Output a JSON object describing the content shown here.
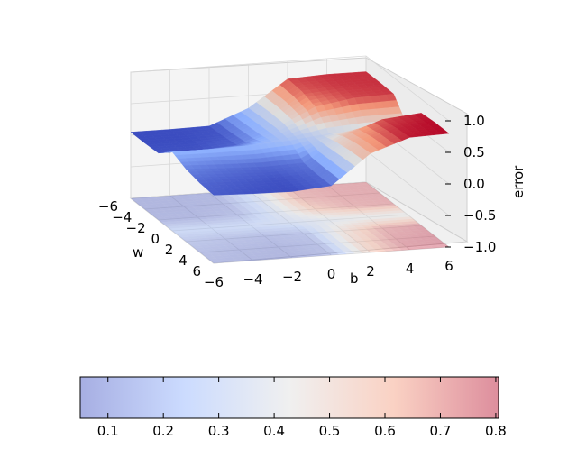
{
  "chart_data": {
    "type": "surface3d",
    "title": "",
    "x_axis": {
      "label": "w",
      "ticks": [
        "−6",
        "−4",
        "−2",
        "0",
        "2",
        "4",
        "6"
      ],
      "range": [
        -6,
        6
      ]
    },
    "y_axis": {
      "label": "b",
      "ticks": [
        "−6",
        "−4",
        "−2",
        "0",
        "2",
        "4",
        "6"
      ],
      "range": [
        -6,
        6
      ]
    },
    "z_axis": {
      "label": "error",
      "ticks": [
        "−1.0",
        "−0.5",
        "0.0",
        "0.5",
        "1.0"
      ],
      "range": [
        -1.0,
        1.0
      ]
    },
    "surface": {
      "w": [
        -6,
        -4,
        -2,
        0,
        2,
        4,
        6
      ],
      "b": [
        -6,
        -4,
        -2,
        0,
        2,
        4,
        6
      ],
      "error": [
        [
          0.05,
          0.05,
          0.06,
          0.3,
          0.72,
          0.75,
          0.75
        ],
        [
          0.05,
          0.05,
          0.07,
          0.32,
          0.7,
          0.74,
          0.75
        ],
        [
          0.06,
          0.06,
          0.1,
          0.33,
          0.62,
          0.72,
          0.74
        ],
        [
          0.25,
          0.25,
          0.26,
          0.3,
          0.37,
          0.4,
          0.4
        ],
        [
          0.15,
          0.12,
          0.1,
          0.12,
          0.5,
          0.72,
          0.78
        ],
        [
          0.1,
          0.08,
          0.06,
          0.1,
          0.55,
          0.76,
          0.8
        ],
        [
          0.08,
          0.06,
          0.05,
          0.1,
          0.57,
          0.78,
          0.8
        ]
      ]
    },
    "contour_projection": {
      "plane": "error = -1",
      "present": true
    },
    "colormap": "coolwarm",
    "colorbar": {
      "orientation": "horizontal",
      "ticks": [
        "0.1",
        "0.2",
        "0.3",
        "0.4",
        "0.5",
        "0.6",
        "0.7",
        "0.8"
      ],
      "range": [
        0.05,
        0.805
      ]
    },
    "grid": true
  }
}
